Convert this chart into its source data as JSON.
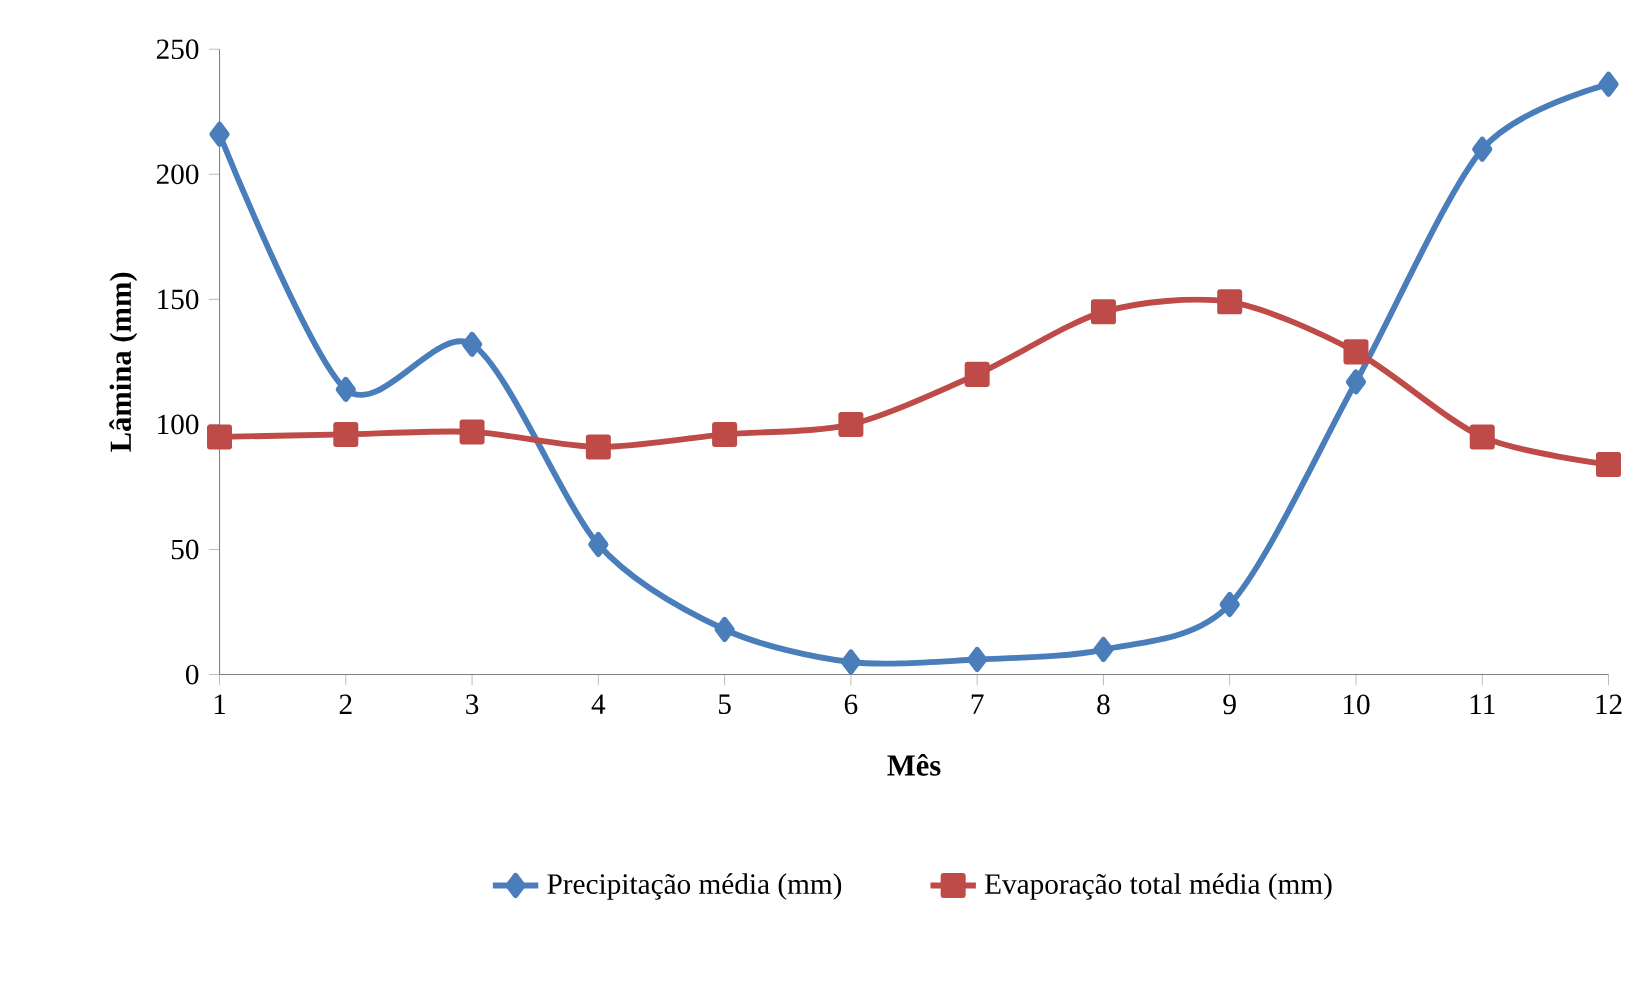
{
  "chart_data": {
    "type": "line",
    "xlabel": "Mês",
    "ylabel": "Lâmina (mm)",
    "x": [
      1,
      2,
      3,
      4,
      5,
      6,
      7,
      8,
      9,
      10,
      11,
      12
    ],
    "xlim": [
      1,
      12
    ],
    "xticks": [
      1,
      2,
      3,
      4,
      5,
      6,
      7,
      8,
      9,
      10,
      11,
      12
    ],
    "ylim": [
      0,
      250
    ],
    "yticks": [
      0,
      50,
      100,
      150,
      200,
      250
    ],
    "legend": "bottom",
    "series": [
      {
        "name": "Precipitação média (mm)",
        "color": "#4a7ebb",
        "marker": "diamond",
        "values": [
          216,
          114,
          132,
          52,
          18,
          5,
          6,
          10,
          28,
          117,
          210,
          236
        ]
      },
      {
        "name": "Evaporação total média (mm)",
        "color": "#be4b48",
        "marker": "square",
        "values": [
          95,
          96,
          97,
          91,
          96,
          100,
          120,
          145,
          149,
          129,
          95,
          84
        ]
      }
    ]
  }
}
